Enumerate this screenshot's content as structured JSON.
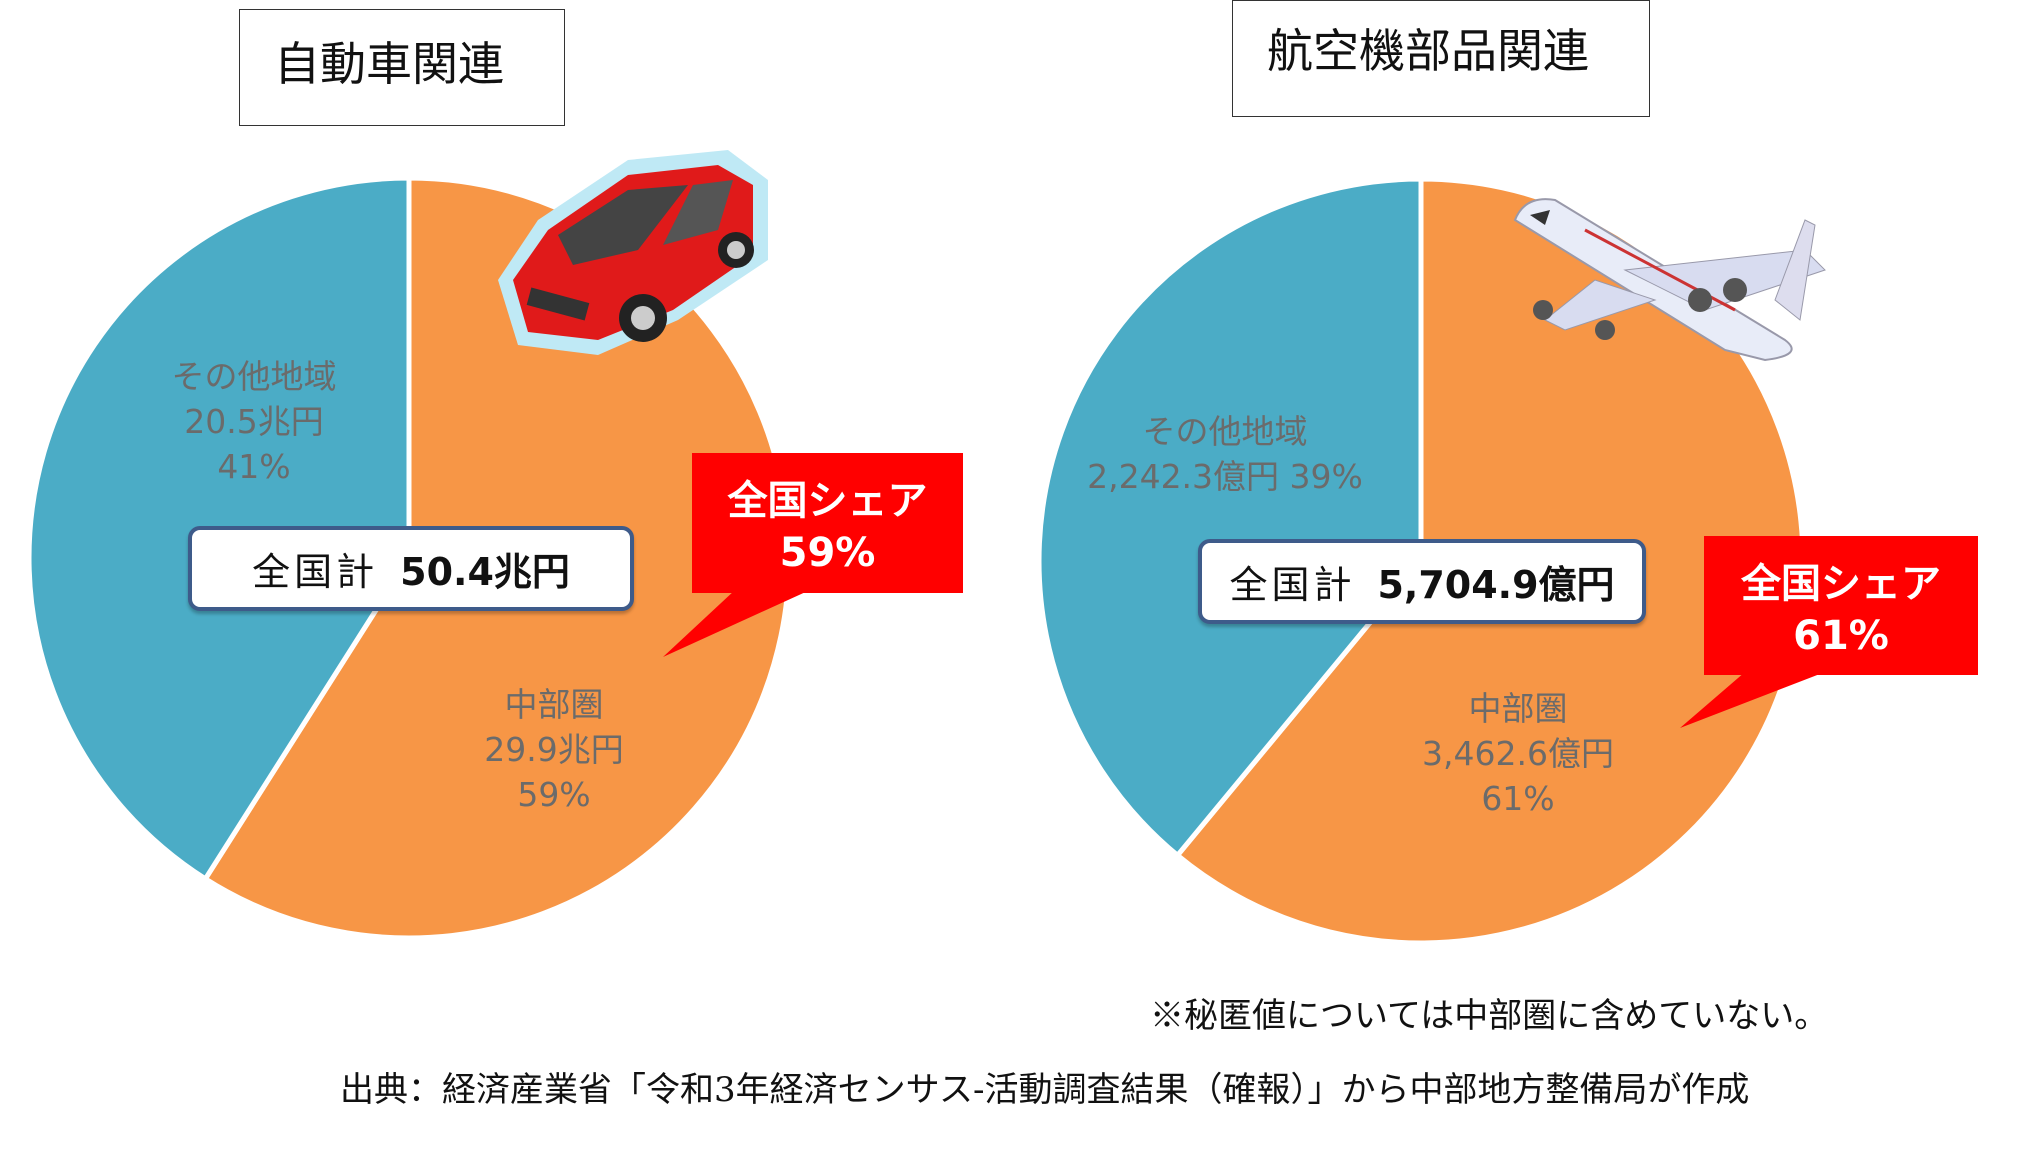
{
  "chart_data": [
    {
      "type": "pie",
      "title": "自動車関連",
      "total_label": "全国計",
      "total_value": "50.4兆円",
      "slices": [
        {
          "name": "中部圏",
          "amount": "29.9兆円",
          "percent": 59,
          "percent_label": "59%",
          "color": "#f79646"
        },
        {
          "name": "その他地域",
          "amount": "20.5兆円",
          "percent": 41,
          "percent_label": "41%",
          "color": "#4bacc6"
        }
      ],
      "callout": {
        "title": "全国シェア",
        "value": "59%"
      }
    },
    {
      "type": "pie",
      "title": "航空機部品関連",
      "total_label": "全国計",
      "total_value": "5,704.9億円",
      "slices": [
        {
          "name": "中部圏",
          "amount": "3,462.6億円",
          "percent": 61,
          "percent_label": "61%",
          "color": "#f79646"
        },
        {
          "name": "その他地域",
          "amount": "2,242.3億円",
          "percent": 39,
          "percent_label": "39%",
          "color": "#4bacc6"
        }
      ],
      "callout": {
        "title": "全国シェア",
        "value": "61%"
      }
    }
  ],
  "note": "※秘匿値については中部圏に含めていない。",
  "source": "出典：経済産業省「令和3年経済センサス-活動調査結果（確報）」から中部地方整備局が作成",
  "icons": [
    "car-icon",
    "airplane-icon"
  ]
}
